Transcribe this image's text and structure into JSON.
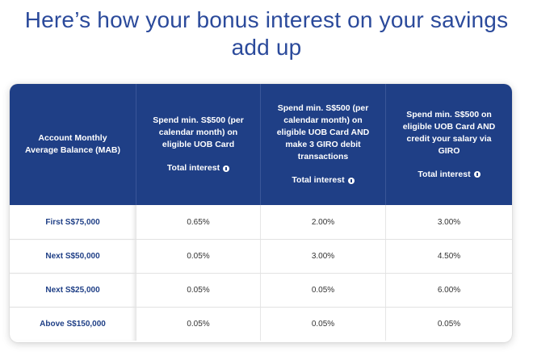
{
  "heading": {
    "line1": "Here’s how your bonus interest on your savings",
    "line2": "add up"
  },
  "table": {
    "headers": [
      {
        "lines": [
          "Account Monthly Average Balance (MAB)"
        ]
      },
      {
        "lines": [
          "Spend min. S$500 (per calendar month) on eligible UOB Card"
        ],
        "total": "Total interest"
      },
      {
        "lines": [
          "Spend min. S$500 (per calendar month) on eligible UOB Card AND make 3 GIRO debit transactions"
        ],
        "total": "Total interest"
      },
      {
        "lines": [
          "Spend min. S$500 on eligible UOB Card AND credit your salary via GIRO"
        ],
        "total": "Total interest"
      }
    ],
    "rows": [
      {
        "label": "First S$75,000",
        "values": [
          "0.65%",
          "2.00%",
          "3.00%"
        ]
      },
      {
        "label": "Next S$50,000",
        "values": [
          "0.05%",
          "3.00%",
          "4.50%"
        ]
      },
      {
        "label": "Next S$25,000",
        "values": [
          "0.05%",
          "0.05%",
          "6.00%"
        ]
      },
      {
        "label": "Above S$150,000",
        "values": [
          "0.05%",
          "0.05%",
          "0.05%"
        ]
      }
    ]
  },
  "colors": {
    "heading": "#2b4a9b",
    "header_bg": "#1f3f86",
    "label_text": "#1f3f86"
  },
  "icons": {
    "info": "info-icon"
  }
}
